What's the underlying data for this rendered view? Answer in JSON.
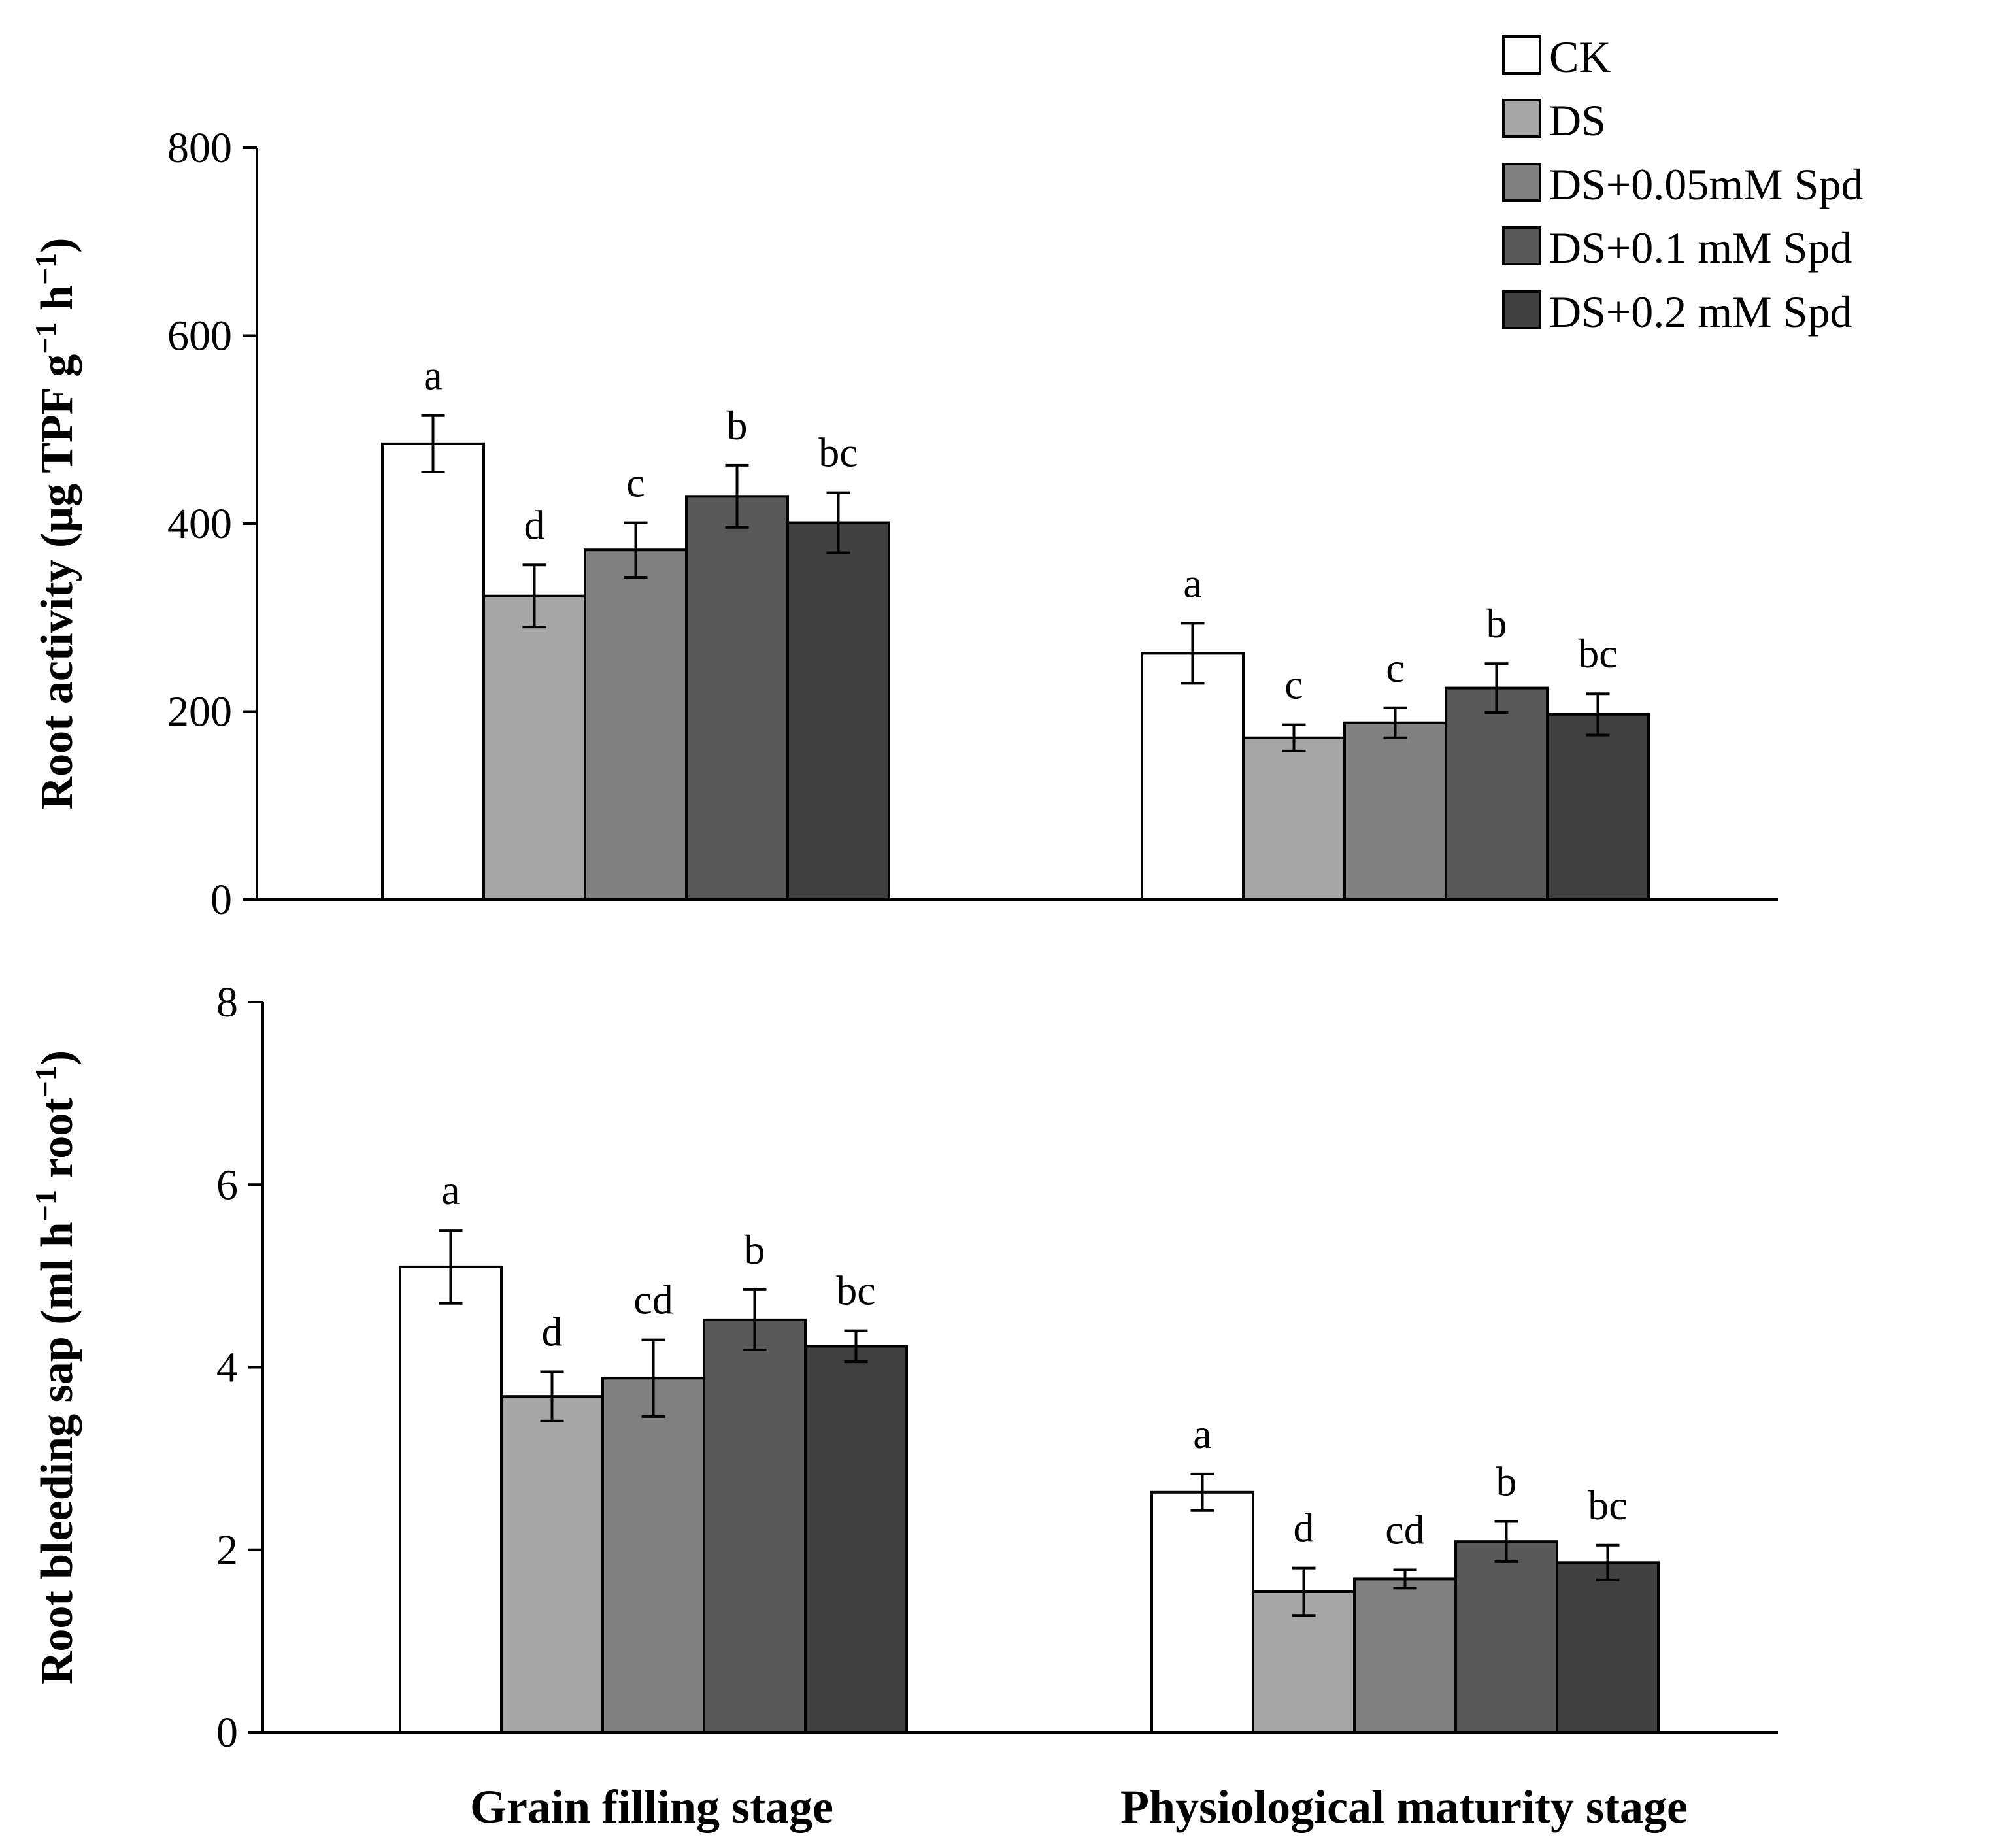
{
  "series_colors": [
    "#ffffff",
    "#a6a6a6",
    "#808080",
    "#595959",
    "#404040"
  ],
  "legend": {
    "entries": [
      "CK",
      "DS",
      "DS+0.05mM Spd",
      "DS+0.1 mM Spd",
      "DS+0.2 mM Spd"
    ]
  },
  "chart_data": [
    {
      "type": "bar",
      "title": "",
      "xlabel": "",
      "ylabel": "Root activity (μg TPF g",
      "ylabel_sup1": "−1",
      "ylabel_mid": " h",
      "ylabel_sup2": "−1",
      "ylabel_end": ")",
      "ylim": [
        0,
        800
      ],
      "yticks": [
        "0",
        "200",
        "400",
        "600",
        "800"
      ],
      "ytick_values": [
        0,
        200,
        400,
        600,
        800
      ],
      "grid": false,
      "categories": [
        "Grain filling stage",
        "Physiological maturity stage"
      ],
      "series": [
        {
          "name": "CK",
          "values": [
            485,
            262
          ],
          "errors": [
            30,
            32
          ],
          "letters": [
            "a",
            "a"
          ]
        },
        {
          "name": "DS",
          "values": [
            323,
            172
          ],
          "errors": [
            33,
            14
          ],
          "letters": [
            "d",
            "c"
          ]
        },
        {
          "name": "DS+0.05mM Spd",
          "values": [
            372,
            188
          ],
          "errors": [
            29,
            16
          ],
          "letters": [
            "c",
            "c"
          ]
        },
        {
          "name": "DS+0.1 mM Spd",
          "values": [
            429,
            225
          ],
          "errors": [
            33,
            26
          ],
          "letters": [
            "b",
            "b"
          ]
        },
        {
          "name": "DS+0.2 mM Spd",
          "values": [
            401,
            197
          ],
          "errors": [
            32,
            22
          ],
          "letters": [
            "bc",
            "bc"
          ]
        }
      ]
    },
    {
      "type": "bar",
      "title": "",
      "ylabel": "Root bleeding sap (ml h",
      "ylabel_sup1": "−1",
      "ylabel_mid": " root",
      "ylabel_sup2": "−1",
      "ylabel_end": ")",
      "ylim": [
        0,
        8
      ],
      "yticks": [
        "0",
        "2",
        "4",
        "6",
        "8"
      ],
      "ytick_values": [
        0,
        2,
        4,
        6,
        8
      ],
      "grid": false,
      "categories": [
        "Grain filling stage",
        "Physiological maturity stage"
      ],
      "series": [
        {
          "name": "CK",
          "values": [
            5.1,
            2.63
          ],
          "errors": [
            0.4,
            0.2
          ],
          "letters": [
            "a",
            "a"
          ]
        },
        {
          "name": "DS",
          "values": [
            3.68,
            1.54
          ],
          "errors": [
            0.27,
            0.26
          ],
          "letters": [
            "d",
            "d"
          ]
        },
        {
          "name": "DS+0.05mM Spd",
          "values": [
            3.88,
            1.68
          ],
          "errors": [
            0.42,
            0.1
          ],
          "letters": [
            "cd",
            "cd"
          ]
        },
        {
          "name": "DS+0.1 mM Spd",
          "values": [
            4.52,
            2.09
          ],
          "errors": [
            0.33,
            0.22
          ],
          "letters": [
            "b",
            "b"
          ]
        },
        {
          "name": "DS+0.2 mM Spd",
          "values": [
            4.23,
            1.86
          ],
          "errors": [
            0.17,
            0.19
          ],
          "letters": [
            "bc",
            "bc"
          ]
        }
      ]
    }
  ]
}
